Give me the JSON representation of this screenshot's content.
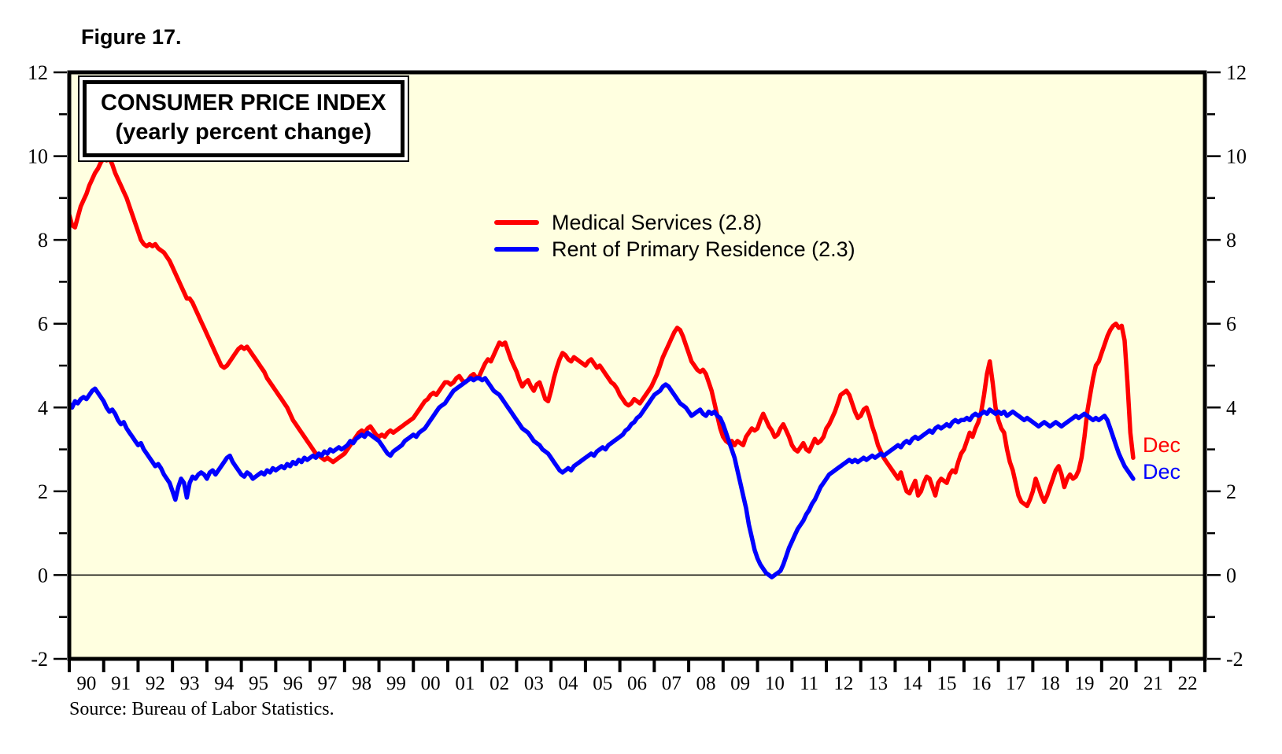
{
  "figure_label": "Figure 17.",
  "chart_title": {
    "line1": "CONSUMER PRICE INDEX",
    "line2": "(yearly percent change)"
  },
  "legend": [
    {
      "label": "Medical Services (2.8)",
      "color": "#FF0000"
    },
    {
      "label": "Rent of Primary Residence (2.3)",
      "color": "#0000FF"
    }
  ],
  "end_labels": {
    "medical": "Dec",
    "rent": "Dec"
  },
  "source": "Source: Bureau of Labor Statistics.",
  "colors": {
    "red": "#FF0000",
    "blue": "#0000FF",
    "plot_bg": "#FFFFE0",
    "frame": "#000000"
  },
  "chart_data": {
    "type": "line",
    "title": "CONSUMER PRICE INDEX (yearly percent change)",
    "frequency": "monthly",
    "start": "1990-01",
    "end": "2020-12",
    "x_range": [
      1990,
      2023
    ],
    "ylim": [
      -2,
      12
    ],
    "zero_line": true,
    "grid": false,
    "legend_position": "upper-center",
    "x_tick_labels": [
      "90",
      "91",
      "92",
      "93",
      "94",
      "95",
      "96",
      "97",
      "98",
      "99",
      "00",
      "01",
      "02",
      "03",
      "04",
      "05",
      "06",
      "07",
      "08",
      "09",
      "10",
      "11",
      "12",
      "13",
      "14",
      "15",
      "16",
      "17",
      "18",
      "19",
      "20",
      "21",
      "22"
    ],
    "y_major_ticks": [
      -2,
      0,
      2,
      4,
      6,
      8,
      10,
      12
    ],
    "y_minor_ticks": [
      -1,
      1,
      3,
      5,
      7,
      9,
      11
    ],
    "series": [
      {
        "name": "Medical Services (2.8)",
        "color": "#FF0000",
        "last_label": "Dec",
        "last_value": 2.8,
        "values": [
          8.6,
          8.35,
          8.3,
          8.55,
          8.8,
          8.95,
          9.1,
          9.3,
          9.45,
          9.6,
          9.7,
          9.85,
          9.95,
          9.9,
          9.95,
          9.8,
          9.6,
          9.45,
          9.3,
          9.15,
          9.0,
          8.8,
          8.6,
          8.4,
          8.2,
          8.0,
          7.9,
          7.85,
          7.9,
          7.85,
          7.9,
          7.8,
          7.75,
          7.7,
          7.6,
          7.5,
          7.35,
          7.2,
          7.05,
          6.9,
          6.75,
          6.6,
          6.6,
          6.5,
          6.35,
          6.2,
          6.05,
          5.9,
          5.75,
          5.6,
          5.45,
          5.3,
          5.15,
          5.0,
          4.95,
          5.0,
          5.1,
          5.2,
          5.3,
          5.4,
          5.45,
          5.4,
          5.45,
          5.35,
          5.25,
          5.15,
          5.05,
          4.95,
          4.85,
          4.7,
          4.6,
          4.5,
          4.4,
          4.3,
          4.2,
          4.1,
          4.0,
          3.85,
          3.7,
          3.6,
          3.5,
          3.4,
          3.3,
          3.2,
          3.1,
          3.0,
          2.9,
          2.85,
          2.8,
          2.75,
          2.8,
          2.75,
          2.7,
          2.75,
          2.8,
          2.85,
          2.9,
          3.0,
          3.1,
          3.2,
          3.3,
          3.4,
          3.45,
          3.4,
          3.5,
          3.55,
          3.45,
          3.35,
          3.3,
          3.35,
          3.3,
          3.4,
          3.45,
          3.4,
          3.45,
          3.5,
          3.55,
          3.6,
          3.65,
          3.7,
          3.75,
          3.85,
          3.95,
          4.05,
          4.15,
          4.2,
          4.3,
          4.35,
          4.3,
          4.4,
          4.5,
          4.6,
          4.6,
          4.55,
          4.6,
          4.7,
          4.75,
          4.65,
          4.6,
          4.65,
          4.75,
          4.8,
          4.7,
          4.75,
          4.9,
          5.05,
          5.15,
          5.1,
          5.25,
          5.4,
          5.55,
          5.5,
          5.55,
          5.35,
          5.15,
          5.0,
          4.85,
          4.65,
          4.5,
          4.6,
          4.65,
          4.5,
          4.4,
          4.55,
          4.6,
          4.4,
          4.2,
          4.15,
          4.4,
          4.7,
          4.95,
          5.15,
          5.3,
          5.25,
          5.15,
          5.1,
          5.2,
          5.15,
          5.1,
          5.05,
          5.0,
          5.1,
          5.15,
          5.05,
          4.95,
          5.0,
          4.9,
          4.8,
          4.7,
          4.6,
          4.55,
          4.45,
          4.3,
          4.2,
          4.1,
          4.05,
          4.1,
          4.2,
          4.15,
          4.1,
          4.2,
          4.3,
          4.4,
          4.5,
          4.65,
          4.8,
          5.0,
          5.2,
          5.35,
          5.5,
          5.65,
          5.8,
          5.9,
          5.85,
          5.7,
          5.5,
          5.3,
          5.1,
          5.0,
          4.9,
          4.85,
          4.9,
          4.8,
          4.6,
          4.4,
          4.1,
          3.8,
          3.5,
          3.3,
          3.2,
          3.15,
          3.2,
          3.1,
          3.2,
          3.15,
          3.1,
          3.3,
          3.4,
          3.5,
          3.45,
          3.5,
          3.7,
          3.85,
          3.7,
          3.55,
          3.45,
          3.3,
          3.35,
          3.5,
          3.6,
          3.45,
          3.3,
          3.1,
          3.0,
          2.95,
          3.05,
          3.15,
          3.0,
          2.95,
          3.1,
          3.25,
          3.15,
          3.2,
          3.3,
          3.5,
          3.6,
          3.75,
          3.9,
          4.1,
          4.3,
          4.35,
          4.4,
          4.3,
          4.1,
          3.9,
          3.75,
          3.8,
          3.95,
          4.0,
          3.8,
          3.55,
          3.35,
          3.1,
          2.95,
          2.8,
          2.7,
          2.6,
          2.5,
          2.4,
          2.3,
          2.45,
          2.2,
          2.0,
          1.95,
          2.1,
          2.25,
          1.9,
          2.0,
          2.2,
          2.35,
          2.3,
          2.1,
          1.9,
          2.2,
          2.3,
          2.25,
          2.2,
          2.4,
          2.5,
          2.45,
          2.7,
          2.9,
          3.0,
          3.2,
          3.4,
          3.3,
          3.5,
          3.65,
          3.9,
          4.3,
          4.8,
          5.1,
          4.6,
          4.0,
          3.7,
          3.5,
          3.4,
          3.0,
          2.7,
          2.5,
          2.2,
          1.9,
          1.75,
          1.7,
          1.65,
          1.8,
          2.0,
          2.3,
          2.1,
          1.9,
          1.75,
          1.9,
          2.1,
          2.3,
          2.5,
          2.6,
          2.4,
          2.1,
          2.3,
          2.4,
          2.3,
          2.35,
          2.5,
          2.8,
          3.3,
          3.9,
          4.3,
          4.7,
          5.0,
          5.1,
          5.3,
          5.5,
          5.7,
          5.85,
          5.95,
          6.0,
          5.9,
          5.95,
          5.6,
          4.6,
          3.4,
          2.8
        ]
      },
      {
        "name": "Rent of Primary Residence (2.3)",
        "color": "#0000FF",
        "last_label": "Dec",
        "last_value": 2.3,
        "values": [
          4.1,
          4.0,
          4.15,
          4.1,
          4.2,
          4.25,
          4.2,
          4.3,
          4.4,
          4.45,
          4.35,
          4.25,
          4.15,
          4.0,
          3.9,
          3.95,
          3.85,
          3.7,
          3.6,
          3.65,
          3.5,
          3.4,
          3.3,
          3.2,
          3.1,
          3.15,
          3.0,
          2.9,
          2.8,
          2.7,
          2.6,
          2.65,
          2.55,
          2.4,
          2.3,
          2.2,
          2.0,
          1.8,
          2.1,
          2.3,
          2.2,
          1.85,
          2.2,
          2.35,
          2.3,
          2.4,
          2.45,
          2.4,
          2.3,
          2.45,
          2.5,
          2.4,
          2.5,
          2.6,
          2.7,
          2.8,
          2.85,
          2.7,
          2.6,
          2.5,
          2.4,
          2.35,
          2.45,
          2.4,
          2.3,
          2.35,
          2.4,
          2.45,
          2.4,
          2.5,
          2.45,
          2.55,
          2.5,
          2.55,
          2.6,
          2.55,
          2.65,
          2.6,
          2.7,
          2.65,
          2.75,
          2.7,
          2.8,
          2.75,
          2.8,
          2.85,
          2.8,
          2.9,
          2.85,
          2.95,
          2.9,
          3.0,
          2.95,
          3.0,
          3.05,
          3.0,
          3.05,
          3.1,
          3.2,
          3.15,
          3.25,
          3.3,
          3.35,
          3.3,
          3.4,
          3.35,
          3.3,
          3.25,
          3.2,
          3.1,
          3.0,
          2.9,
          2.85,
          2.95,
          3.0,
          3.05,
          3.1,
          3.2,
          3.25,
          3.3,
          3.35,
          3.3,
          3.4,
          3.45,
          3.5,
          3.6,
          3.7,
          3.8,
          3.9,
          4.0,
          4.05,
          4.1,
          4.2,
          4.3,
          4.4,
          4.45,
          4.5,
          4.55,
          4.6,
          4.65,
          4.7,
          4.65,
          4.7,
          4.7,
          4.65,
          4.7,
          4.6,
          4.5,
          4.4,
          4.35,
          4.3,
          4.2,
          4.1,
          4.0,
          3.9,
          3.8,
          3.7,
          3.6,
          3.5,
          3.45,
          3.4,
          3.3,
          3.2,
          3.15,
          3.1,
          3.0,
          2.95,
          2.9,
          2.8,
          2.7,
          2.6,
          2.5,
          2.45,
          2.5,
          2.55,
          2.5,
          2.6,
          2.65,
          2.7,
          2.75,
          2.8,
          2.85,
          2.9,
          2.85,
          2.95,
          3.0,
          3.05,
          3.0,
          3.1,
          3.15,
          3.2,
          3.25,
          3.3,
          3.35,
          3.45,
          3.5,
          3.6,
          3.65,
          3.75,
          3.8,
          3.9,
          4.0,
          4.1,
          4.2,
          4.3,
          4.35,
          4.4,
          4.5,
          4.55,
          4.5,
          4.4,
          4.3,
          4.2,
          4.1,
          4.05,
          4.0,
          3.9,
          3.8,
          3.85,
          3.9,
          3.95,
          3.85,
          3.8,
          3.9,
          3.85,
          3.9,
          3.8,
          3.75,
          3.6,
          3.4,
          3.2,
          3.0,
          2.8,
          2.5,
          2.2,
          1.9,
          1.6,
          1.2,
          0.9,
          0.6,
          0.4,
          0.25,
          0.15,
          0.05,
          0.0,
          -0.05,
          0.0,
          0.05,
          0.1,
          0.25,
          0.45,
          0.65,
          0.8,
          0.95,
          1.1,
          1.2,
          1.3,
          1.45,
          1.55,
          1.7,
          1.8,
          1.95,
          2.1,
          2.2,
          2.3,
          2.4,
          2.45,
          2.5,
          2.55,
          2.6,
          2.65,
          2.7,
          2.75,
          2.7,
          2.75,
          2.7,
          2.75,
          2.8,
          2.75,
          2.8,
          2.85,
          2.8,
          2.85,
          2.9,
          2.85,
          2.9,
          2.95,
          3.0,
          3.05,
          3.1,
          3.05,
          3.15,
          3.2,
          3.15,
          3.25,
          3.3,
          3.25,
          3.3,
          3.35,
          3.4,
          3.45,
          3.4,
          3.5,
          3.55,
          3.5,
          3.55,
          3.6,
          3.55,
          3.65,
          3.7,
          3.65,
          3.7,
          3.7,
          3.75,
          3.7,
          3.8,
          3.85,
          3.8,
          3.85,
          3.9,
          3.85,
          3.95,
          3.9,
          3.85,
          3.9,
          3.85,
          3.9,
          3.8,
          3.85,
          3.9,
          3.85,
          3.8,
          3.75,
          3.7,
          3.75,
          3.7,
          3.65,
          3.6,
          3.55,
          3.6,
          3.65,
          3.6,
          3.55,
          3.6,
          3.65,
          3.6,
          3.55,
          3.6,
          3.65,
          3.7,
          3.75,
          3.8,
          3.75,
          3.8,
          3.85,
          3.8,
          3.75,
          3.7,
          3.75,
          3.7,
          3.75,
          3.8,
          3.7,
          3.5,
          3.3,
          3.1,
          2.9,
          2.75,
          2.6,
          2.5,
          2.4,
          2.3
        ]
      }
    ]
  }
}
